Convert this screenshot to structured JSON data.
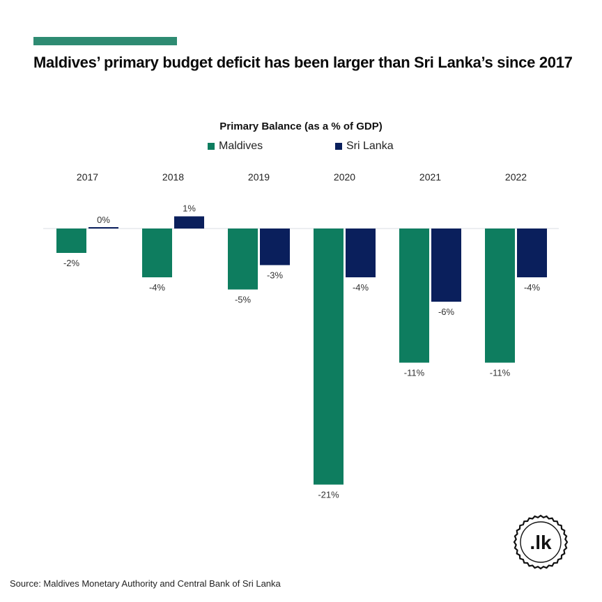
{
  "headline": "Maldives’ primary budget deficit has been larger than Sri Lanka’s since 2017",
  "source": "Source: Maldives Monetary Authority and Central Bank of Sri Lanka",
  "logo_text": ".lk",
  "colors": {
    "accent": "#2e8b72",
    "maldives": "#0e7d5f",
    "sri_lanka": "#0a1f5c",
    "zero_line": "#d8dde3",
    "text": "#111111"
  },
  "chart_data": {
    "type": "bar",
    "title": "Primary Balance (as a % of GDP)",
    "categories": [
      "2017",
      "2018",
      "2019",
      "2020",
      "2021",
      "2022"
    ],
    "series": [
      {
        "name": "Maldives",
        "values": [
          -2,
          -4,
          -5,
          -21,
          -11,
          -11
        ],
        "labels": [
          "-2%",
          "-4%",
          "-5%",
          "-21%",
          "-11%",
          "-11%"
        ]
      },
      {
        "name": "Sri Lanka",
        "values": [
          0,
          1,
          -3,
          -4,
          -6,
          -4
        ],
        "labels": [
          "0%",
          "1%",
          "-3%",
          "-4%",
          "-6%",
          "-4%"
        ]
      }
    ],
    "legend_position": "top",
    "xlabel": "",
    "ylabel": "",
    "grid": false
  }
}
